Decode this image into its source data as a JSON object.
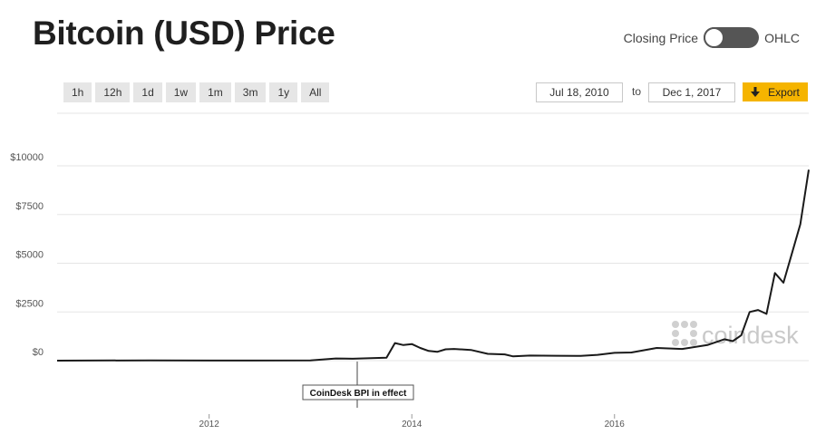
{
  "title": "Bitcoin (USD) Price",
  "toggle": {
    "left_label": "Closing Price",
    "right_label": "OHLC"
  },
  "range_buttons": [
    "1h",
    "12h",
    "1d",
    "1w",
    "1m",
    "3m",
    "1y",
    "All"
  ],
  "date_from": "Jul 18, 2010",
  "to_label": "to",
  "date_to": "Dec 1, 2017",
  "export": {
    "label": "Export",
    "icon": "download-arrow-icon"
  },
  "colors": {
    "accent": "#f5b400",
    "line": "#1a1a1a",
    "toggle": "#555555"
  },
  "annotation": {
    "label": "CoinDesk BPI in effect",
    "date": "2013-07"
  },
  "watermark": "coindesk",
  "chart_data": {
    "type": "line",
    "series": [
      {
        "x": [
          "2010-07",
          "2011-06",
          "2012-01",
          "2012-06",
          "2013-01",
          "2013-04",
          "2013-06",
          "2013-10",
          "2013-11",
          "2013-12",
          "2014-01",
          "2014-02",
          "2014-03",
          "2014-04",
          "2014-05",
          "2014-06",
          "2014-08",
          "2014-10",
          "2014-12",
          "2015-01",
          "2015-03",
          "2015-06",
          "2015-09",
          "2015-11",
          "2016-01",
          "2016-03",
          "2016-06",
          "2016-09",
          "2016-12",
          "2017-02",
          "2017-03",
          "2017-04",
          "2017-05",
          "2017-06",
          "2017-07",
          "2017-08",
          "2017-09",
          "2017-10",
          "2017-11",
          "2017-12"
        ],
        "y": [
          0,
          15,
          6,
          6,
          14,
          110,
          100,
          150,
          900,
          800,
          850,
          650,
          500,
          450,
          580,
          600,
          550,
          350,
          320,
          220,
          260,
          250,
          240,
          300,
          400,
          420,
          650,
          600,
          800,
          1100,
          1000,
          1300,
          2500,
          2600,
          2400,
          4500,
          4000,
          5500,
          7000,
          9800
        ]
      }
    ],
    "ylim": [
      0,
      10500
    ],
    "yticks": [
      "$0",
      "$2500",
      "$5000",
      "$7500",
      "$10000"
    ],
    "ytick_values": [
      0,
      2500,
      5000,
      7500,
      10000
    ],
    "xticks": [
      "2012",
      "2014",
      "2016"
    ],
    "xtick_dates": [
      "2012-01",
      "2014-01",
      "2016-01"
    ],
    "xrange": [
      "2010-07",
      "2017-12"
    ],
    "grid": true
  }
}
